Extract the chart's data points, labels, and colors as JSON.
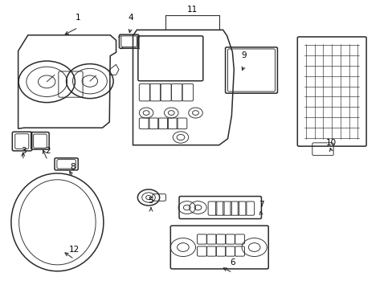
{
  "background_color": "#ffffff",
  "line_color": "#2a2a2a",
  "fig_width": 4.89,
  "fig_height": 3.6,
  "dpi": 100,
  "lw_main": 1.1,
  "lw_thin": 0.65,
  "label_fontsize": 7.5
}
